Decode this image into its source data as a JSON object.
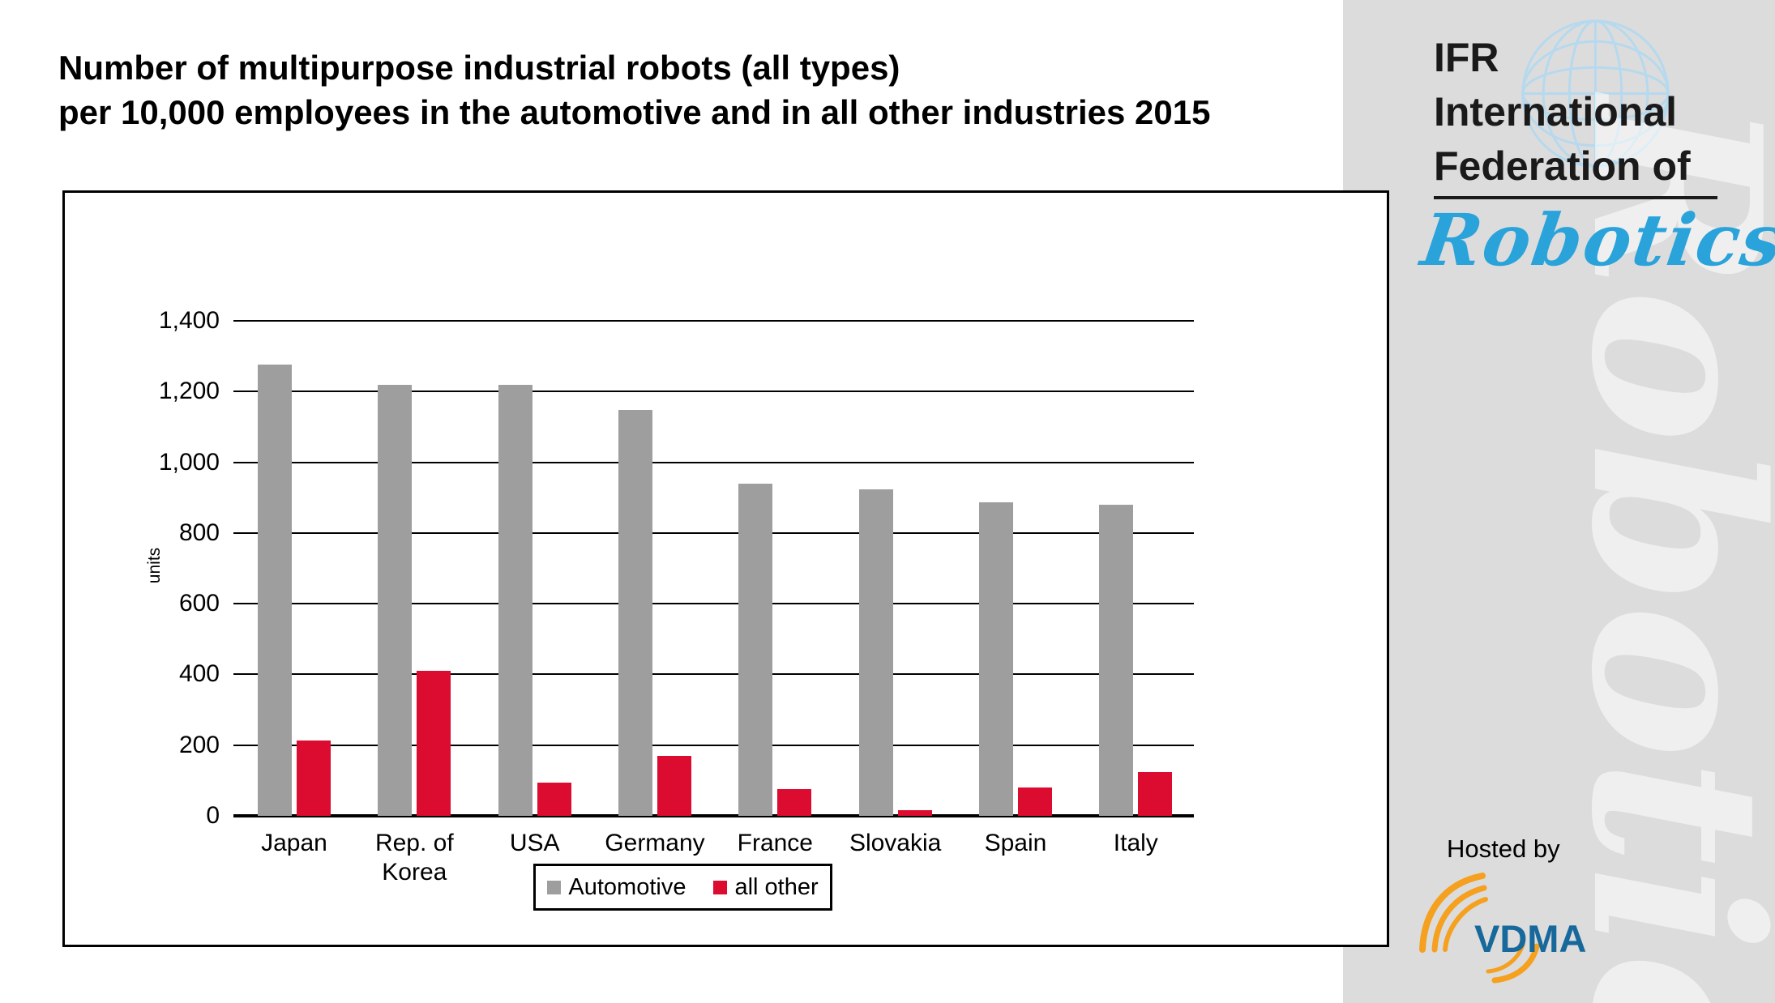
{
  "header": {
    "title_line1": "Number of multipurpose industrial robots (all types)",
    "title_line2": "per 10,000 employees in the automotive and in all other industries 2015"
  },
  "brand_panel": {
    "org_line1": "IFR",
    "org_line2": "International",
    "org_line3": "Federation of",
    "script_logo": "Robotics",
    "watermark": "Robotics",
    "hosted_by": "Hosted by",
    "vdma": "VDMA",
    "colors": {
      "panel_bg": "#dcdcdc",
      "script_blue": "#2aa3db",
      "globe_blue": "#b5d9ee",
      "vdma_blue": "#17689b",
      "vdma_orange": "#f5a01e"
    }
  },
  "chart_data": {
    "type": "bar",
    "title": "Number of multipurpose industrial robots (all types) per 10,000 employees in the automotive and in all other industries 2015",
    "categories": [
      "Japan",
      "Rep. of Korea",
      "USA",
      "Germany",
      "France",
      "Slovakia",
      "Spain",
      "Italy"
    ],
    "category_label_lines": [
      [
        "Japan"
      ],
      [
        "Rep. of",
        "Korea"
      ],
      [
        "USA"
      ],
      [
        "Germany"
      ],
      [
        "France"
      ],
      [
        "Slovakia"
      ],
      [
        "Spain"
      ],
      [
        "Italy"
      ]
    ],
    "series": [
      {
        "name": "Automotive",
        "color": "#9e9e9e",
        "values": [
          1276,
          1218,
          1218,
          1147,
          940,
          924,
          887,
          879
        ]
      },
      {
        "name": "all other",
        "color": "#dc0c30",
        "values": [
          214,
          411,
          93,
          170,
          75,
          16,
          80,
          123
        ]
      }
    ],
    "xlabel": "",
    "ylabel": "units",
    "ylim": [
      0,
      1400
    ],
    "ytick_step": 200,
    "ytick_labels": [
      "0",
      "200",
      "400",
      "600",
      "800",
      "1,000",
      "1,200",
      "1,400"
    ],
    "grid": true,
    "legend_position": "bottom-center"
  }
}
